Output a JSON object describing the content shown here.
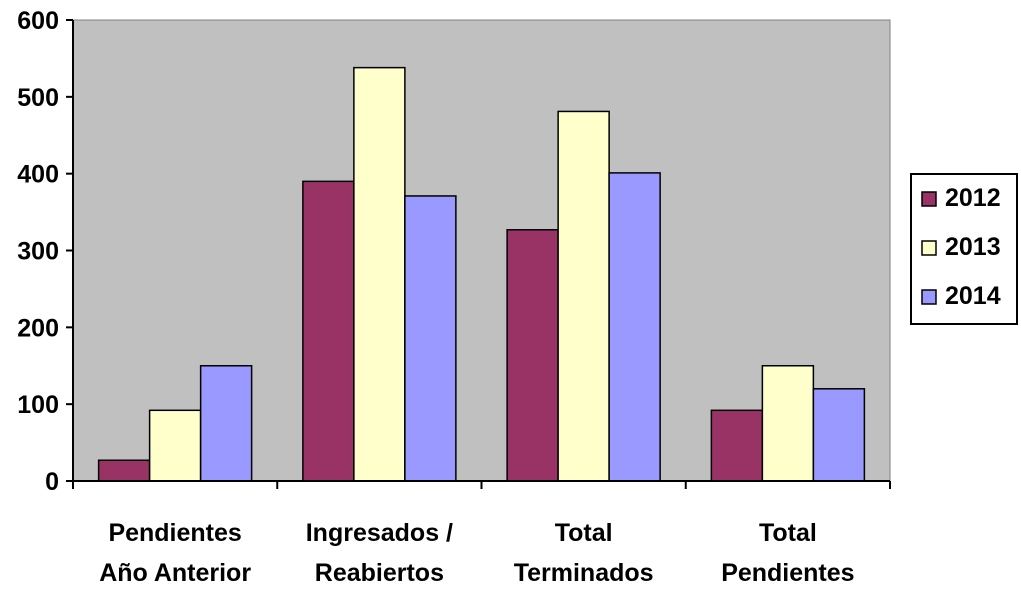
{
  "chart_data": {
    "type": "bar",
    "categories": [
      [
        "Pendientes",
        "Año Anterior"
      ],
      [
        "Ingresados /",
        "Reabiertos"
      ],
      [
        "Total",
        "Terminados"
      ],
      [
        "Total",
        "Pendientes"
      ]
    ],
    "series": [
      {
        "name": "2012",
        "color": "#993366",
        "values": [
          27,
          390,
          327,
          92
        ]
      },
      {
        "name": "2013",
        "color": "#FFFFCC",
        "values": [
          92,
          538,
          481,
          150
        ]
      },
      {
        "name": "2014",
        "color": "#9999FF",
        "values": [
          150,
          371,
          401,
          120
        ]
      }
    ],
    "yticks": [
      "0",
      "100",
      "200",
      "300",
      "400",
      "500",
      "600"
    ],
    "ylim": [
      0,
      600
    ],
    "plot_background": "#C0C0C0",
    "grid": false,
    "legend_position": "right",
    "title": "",
    "xlabel": "",
    "ylabel": ""
  }
}
